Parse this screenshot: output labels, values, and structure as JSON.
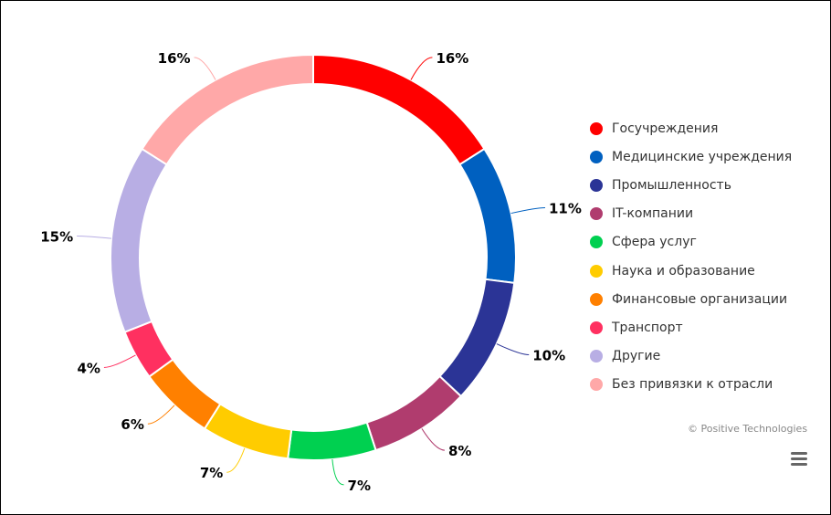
{
  "chart_data": {
    "type": "pie",
    "variant": "donut",
    "labels": [
      "Госучреждения",
      "Медицинские учреждения",
      "Промышленность",
      "IT-компании",
      "Сфера услуг",
      "Наука и образование",
      "Финансовые организации",
      "Транспорт",
      "Другие",
      "Без привязки к отрасли"
    ],
    "values": [
      16,
      11,
      10,
      8,
      7,
      7,
      6,
      4,
      15,
      16
    ],
    "data_labels": [
      "16%",
      "11%",
      "10%",
      "8%",
      "7%",
      "7%",
      "6%",
      "4%",
      "15%",
      "16%"
    ],
    "colors": [
      "#ff0000",
      "#0060c0",
      "#2b3496",
      "#b03c6e",
      "#00d050",
      "#ffcc00",
      "#ff8000",
      "#ff3060",
      "#b8aee4",
      "#ffa8a8"
    ],
    "legend_position": "right"
  },
  "credits": "© Positive Technologies",
  "menu_icon": "hamburger-menu-icon"
}
